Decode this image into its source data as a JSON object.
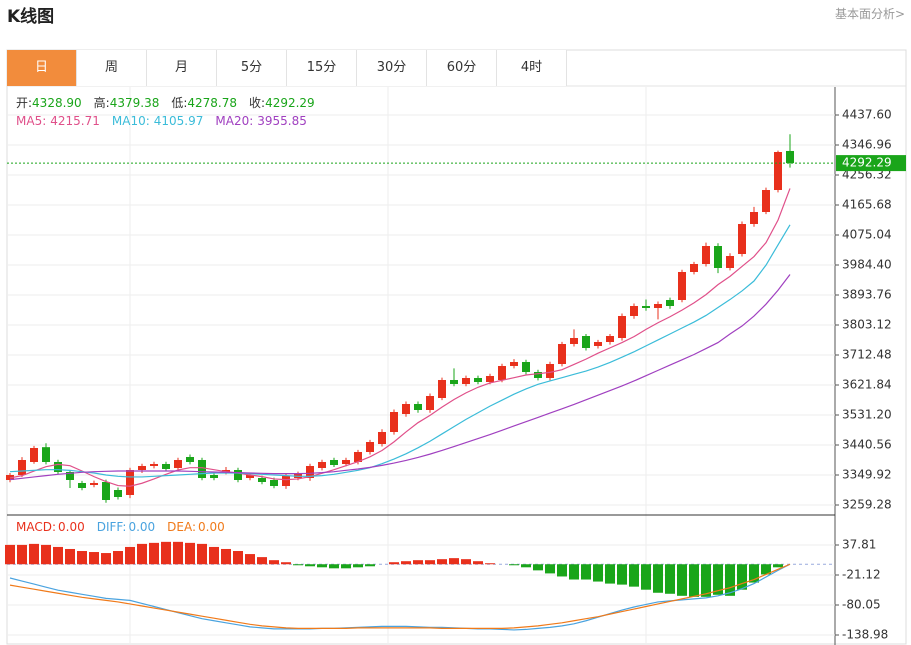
{
  "header": {
    "title": "K线图",
    "link": "基本面分析>"
  },
  "tabs": [
    "日",
    "周",
    "月",
    "5分",
    "15分",
    "30分",
    "60分",
    "4时"
  ],
  "active_tab": 0,
  "chart_data": [
    {
      "type": "candlestick",
      "readout": [
        {
          "label": "开:",
          "value": "4328.90"
        },
        {
          "label": "高:",
          "value": "4379.38"
        },
        {
          "label": "低:",
          "value": "4278.78"
        },
        {
          "label": "收:",
          "value": "4292.29"
        }
      ],
      "up_color": "#e8301c",
      "down_color": "#1aa51a",
      "grid": true,
      "ylim": [
        3229.07,
        4519.18
      ],
      "yticks": [
        {
          "value": 4437.6,
          "label": "4437.60"
        },
        4346.96,
        4256.32,
        4165.68,
        4075.04,
        {
          "value": 3984.4,
          "label": "3984.40"
        },
        3893.76,
        3803.12,
        3712.48,
        3621.84,
        {
          "value": 3531.2,
          "label": "3531.20"
        },
        3440.56,
        3349.92,
        3259.28
      ],
      "open": [
        3334.83,
        3349.93,
        3389.21,
        3434,
        3389.21,
        3359,
        3325.76,
        3319.72,
        3328.78,
        3304.61,
        3289.51,
        3365.04,
        3377.12,
        3383.17,
        3371.08,
        3404.32,
        3395.25,
        3349.93,
        3359,
        3365.04,
        3340.87,
        3340.87,
        3334.83,
        3316.7,
        3340.87,
        3340.87,
        3371.08,
        3395.25,
        3383.17,
        3389.21,
        3419.42,
        3443.59,
        3479.85,
        3534.23,
        3564.44,
        3546.32,
        3582.57,
        3636.96,
        3624.87,
        3643,
        3630.91,
        3636.96,
        3679.25,
        3691.34,
        3661.13,
        3643,
        3685.3,
        3745.72,
        3769.89,
        3739.68,
        3751.77,
        3763.85,
        3830.32,
        3860.53,
        3854.49,
        3878.66,
        3878.66,
        3963.26,
        3987.43,
        4041.81,
        3975.34,
        4017.64,
        4108.28,
        4144.53,
        4211,
        4328.9
      ],
      "high": [
        3356,
        3404,
        3438,
        3446,
        3396,
        3365,
        3332,
        3333,
        3336,
        3312,
        3372,
        3384,
        3390,
        3390,
        3402,
        3412,
        3402,
        3357,
        3374,
        3372,
        3357,
        3348,
        3342,
        3354,
        3360,
        3384,
        3396,
        3402,
        3402,
        3426,
        3456,
        3488,
        3548,
        3572,
        3572,
        3596,
        3644,
        3672,
        3650,
        3650,
        3656,
        3686,
        3700,
        3698,
        3668,
        3692,
        3752,
        3790,
        3776,
        3758,
        3776,
        3838,
        3868,
        3880,
        3874,
        3886,
        3970,
        3994,
        4052,
        4050,
        4020,
        4116,
        4160,
        4218,
        4330,
        4379.38
      ],
      "low": [
        3328,
        3344,
        3384,
        3382,
        3352,
        3310.66,
        3304,
        3313,
        3266,
        3276,
        3280,
        3356,
        3370,
        3361,
        3364,
        3382,
        3334,
        3334,
        3352,
        3328,
        3334,
        3322,
        3310,
        3308,
        3334,
        3332,
        3364,
        3374,
        3376,
        3382,
        3412,
        3436,
        3472,
        3526,
        3538,
        3538,
        3576,
        3618,
        3618,
        3624,
        3624,
        3630,
        3672,
        3654,
        3636,
        3636,
        3678,
        3738,
        3726,
        3732,
        3744,
        3756,
        3822,
        3846,
        3820,
        3852,
        3872,
        3956,
        3980,
        3960,
        3968,
        4010,
        4100,
        4138,
        4204,
        4278.78
      ],
      "close": [
        3349.93,
        3395.25,
        3431.51,
        3389.21,
        3359,
        3334.83,
        3310.66,
        3325.76,
        3274.4,
        3283.46,
        3365.04,
        3377.12,
        3383.17,
        3368.06,
        3395.25,
        3389.21,
        3340.87,
        3340.87,
        3365.04,
        3334.83,
        3349.93,
        3328.78,
        3316.7,
        3346.91,
        3352.95,
        3377.12,
        3389.21,
        3380.15,
        3395.25,
        3419.42,
        3449.64,
        3479.85,
        3540.27,
        3564.44,
        3546.32,
        3588.62,
        3636.96,
        3624.87,
        3643,
        3630.91,
        3649.04,
        3679.25,
        3691.34,
        3661.13,
        3643,
        3685.3,
        3745.72,
        3763.85,
        3733.64,
        3751.77,
        3769.89,
        3830.32,
        3860.53,
        3854.49,
        3866.57,
        3860.53,
        3963.26,
        3987.43,
        4041.81,
        3975.34,
        4011.6,
        4108.28,
        4144.53,
        4211,
        4325.81,
        4292.29
      ],
      "series": [
        {
          "name": "MA5:",
          "current": "4215.71",
          "color": "#e0508a",
          "values": [
            3341,
            3348,
            3362,
            3375,
            3382,
            3378,
            3362,
            3345,
            3330,
            3318,
            3316,
            3325,
            3338,
            3352,
            3365,
            3372,
            3372,
            3366,
            3360,
            3356,
            3350,
            3345,
            3338,
            3336,
            3338,
            3345,
            3355,
            3366,
            3378,
            3390,
            3405,
            3424,
            3450,
            3480,
            3508,
            3530,
            3555,
            3578,
            3598,
            3615,
            3628,
            3636,
            3644,
            3652,
            3656,
            3660,
            3668,
            3684,
            3700,
            3718,
            3734,
            3750,
            3768,
            3790,
            3810,
            3828,
            3848,
            3870,
            3895,
            3925,
            3950,
            3980,
            4010,
            4052,
            4120,
            4215.71
          ]
        },
        {
          "name": "MA10:",
          "current": "4105.97",
          "color": "#3bbcd9",
          "values": [
            3360,
            3362,
            3364,
            3366,
            3366,
            3364,
            3360,
            3356,
            3350,
            3346,
            3344,
            3344,
            3346,
            3348,
            3350,
            3352,
            3354,
            3356,
            3356,
            3356,
            3354,
            3352,
            3350,
            3348,
            3346,
            3346,
            3348,
            3352,
            3358,
            3364,
            3372,
            3384,
            3398,
            3414,
            3432,
            3452,
            3474,
            3496,
            3518,
            3538,
            3558,
            3576,
            3594,
            3610,
            3624,
            3634,
            3644,
            3654,
            3664,
            3676,
            3690,
            3706,
            3722,
            3740,
            3758,
            3776,
            3794,
            3812,
            3832,
            3856,
            3880,
            3906,
            3936,
            3984,
            4045,
            4105.97
          ]
        },
        {
          "name": "MA20:",
          "current": "3955.85",
          "color": "#a040c0",
          "values": [
            3336,
            3340,
            3344,
            3348,
            3352,
            3355,
            3358,
            3360,
            3361,
            3362,
            3362,
            3362,
            3362,
            3362,
            3362,
            3361,
            3360,
            3359,
            3358,
            3357,
            3356,
            3355,
            3354,
            3354,
            3354,
            3355,
            3357,
            3360,
            3364,
            3368,
            3373,
            3379,
            3386,
            3394,
            3403,
            3413,
            3424,
            3436,
            3448,
            3460,
            3472,
            3485,
            3498,
            3511,
            3524,
            3537,
            3550,
            3563,
            3577,
            3591,
            3605,
            3619,
            3634,
            3650,
            3666,
            3682,
            3698,
            3714,
            3732,
            3750,
            3776,
            3800,
            3830,
            3866,
            3908,
            3955.85
          ]
        }
      ]
    },
    {
      "type": "macd",
      "ylim": [
        -158.62,
        92.81
      ],
      "yticks": [
        37.81,
        -21.12,
        -80.05,
        -138.98
      ],
      "series": [
        {
          "name": "MACD:",
          "current": "0.00",
          "type": "bar",
          "color": "#e8301c",
          "down_color": "#1aa51a",
          "values": [
            38,
            38,
            40,
            38,
            34,
            30,
            26,
            24,
            22,
            26,
            34,
            40,
            42,
            44,
            44,
            42,
            40,
            34,
            30,
            26,
            20,
            14,
            8,
            4,
            -2,
            -4,
            -6,
            -8,
            -8,
            -6,
            -4,
            0,
            4,
            6,
            8,
            8,
            10,
            12,
            10,
            6,
            2,
            0,
            -2,
            -6,
            -12,
            -18,
            -24,
            -30,
            -30,
            -34,
            -38,
            -40,
            -44,
            -50,
            -56,
            -58,
            -62,
            -64,
            -64,
            -60,
            -62,
            -50,
            -36,
            -20,
            -6,
            0
          ]
        },
        {
          "name": "DIFF:",
          "current": "0.00",
          "type": "line",
          "color": "#4aa3df",
          "values": [
            -27,
            -33,
            -39,
            -45,
            -51,
            -55,
            -59,
            -63,
            -67,
            -69,
            -71,
            -77,
            -83,
            -89,
            -95,
            -101,
            -107,
            -111,
            -115,
            -119,
            -123,
            -125,
            -127,
            -127,
            -127,
            -127,
            -126,
            -126,
            -125,
            -124,
            -123,
            -122,
            -122,
            -122,
            -123,
            -124,
            -124,
            -125,
            -126,
            -127,
            -127,
            -128,
            -129,
            -128,
            -126,
            -124,
            -121,
            -117,
            -111,
            -104,
            -97,
            -90,
            -84,
            -79,
            -74,
            -72,
            -70,
            -68,
            -66,
            -62,
            -56,
            -48,
            -38,
            -25,
            -12,
            0
          ]
        },
        {
          "name": "DEA:",
          "current": "0.00",
          "type": "line",
          "color": "#f07a1a",
          "values": [
            -41,
            -45,
            -49,
            -53,
            -57,
            -61,
            -65,
            -68,
            -71,
            -74,
            -78,
            -82,
            -86,
            -90,
            -94,
            -98,
            -102,
            -106,
            -110,
            -114,
            -118,
            -121,
            -123,
            -125,
            -126,
            -126,
            -126,
            -126,
            -126,
            -125,
            -125,
            -125,
            -125,
            -125,
            -125,
            -125,
            -126,
            -126,
            -126,
            -126,
            -126,
            -126,
            -125,
            -123,
            -121,
            -118,
            -115,
            -111,
            -107,
            -103,
            -98,
            -93,
            -88,
            -83,
            -78,
            -73,
            -68,
            -63,
            -58,
            -52,
            -46,
            -38,
            -30,
            -20,
            -10,
            0
          ]
        }
      ]
    }
  ]
}
